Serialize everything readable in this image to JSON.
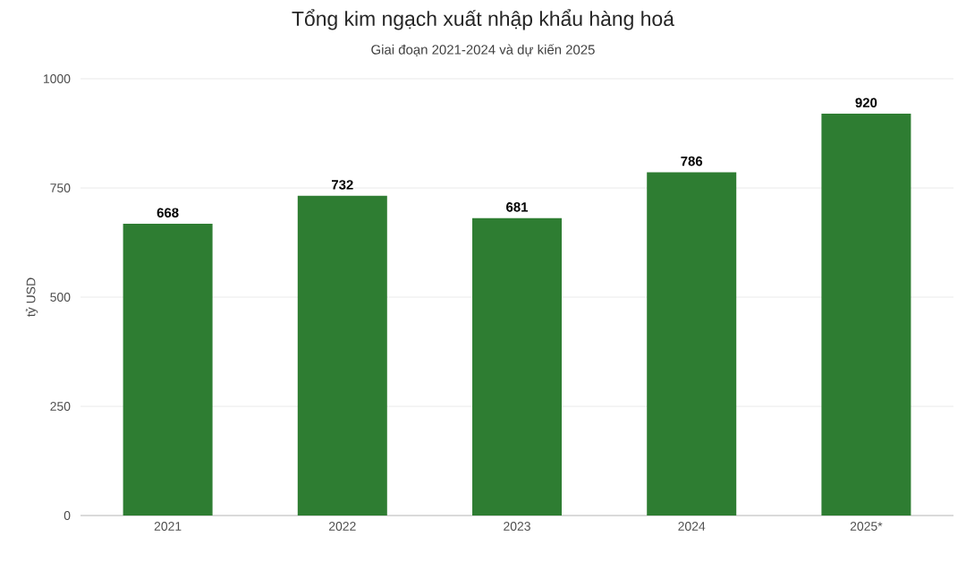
{
  "chart_data": {
    "type": "bar",
    "title": "Tổng kim ngạch xuất nhập khẩu hàng hoá",
    "subtitle": "Giai đoạn 2021-2024 và dự kiến 2025",
    "ylabel": "tỷ USD",
    "categories": [
      "2021",
      "2022",
      "2023",
      "2024",
      "2025*"
    ],
    "values": [
      668,
      732,
      681,
      786,
      920
    ],
    "color": "#2e7d32",
    "ylim": [
      0,
      1000
    ],
    "yticks": [
      0,
      250,
      500,
      750,
      1000
    ],
    "grid": "y",
    "data_labels": true
  }
}
